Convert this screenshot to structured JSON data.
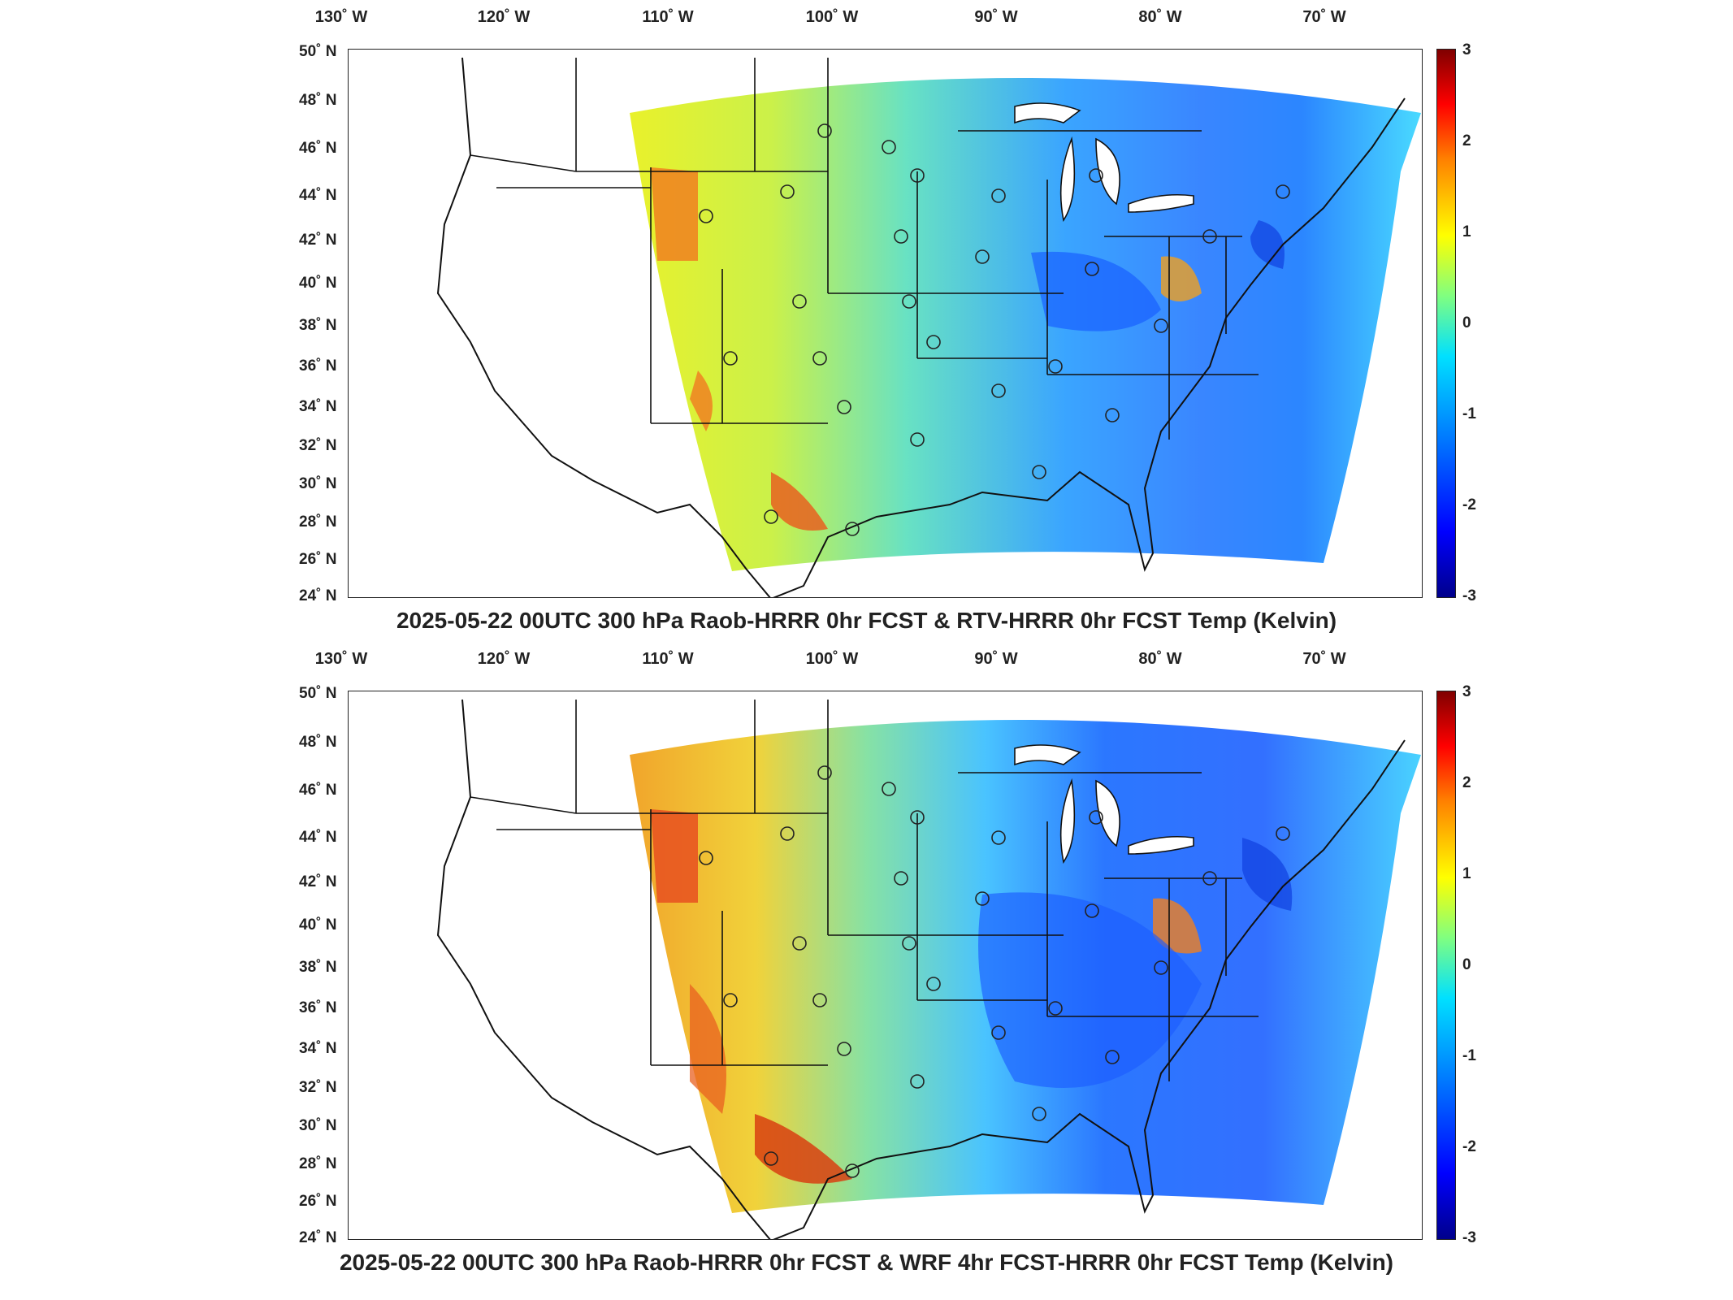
{
  "panels": [
    {
      "title": "2025-05-22 00UTC 300 hPa Raob-HRRR 0hr FCST & RTV-HRRR 0hr FCST Temp (Kelvin)",
      "lon_labels": [
        "130˚ W",
        "120˚ W",
        "110˚ W",
        "100˚ W",
        "90˚ W",
        "80˚ W",
        "70˚ W"
      ],
      "lat_labels": [
        "50˚ N",
        "48˚ N",
        "46˚ N",
        "44˚ N",
        "42˚ N",
        "40˚ N",
        "38˚ N",
        "36˚ N",
        "34˚ N",
        "32˚ N",
        "30˚ N",
        "28˚ N",
        "26˚ N",
        "24˚ N"
      ],
      "colorbar_ticks": [
        "3",
        "2",
        "1",
        "0",
        "-1",
        "-2",
        "-3"
      ]
    },
    {
      "title": "2025-05-22 00UTC 300 hPa Raob-HRRR 0hr FCST & WRF 4hr FCST-HRRR 0hr FCST Temp (Kelvin)",
      "lon_labels": [
        "130˚ W",
        "120˚ W",
        "110˚ W",
        "100˚ W",
        "90˚ W",
        "80˚ W",
        "70˚ W"
      ],
      "lat_labels": [
        "50˚ N",
        "48˚ N",
        "46˚ N",
        "44˚ N",
        "42˚ N",
        "40˚ N",
        "38˚ N",
        "36˚ N",
        "34˚ N",
        "32˚ N",
        "30˚ N",
        "28˚ N",
        "26˚ N",
        "24˚ N"
      ],
      "colorbar_ticks": [
        "3",
        "2",
        "1",
        "0",
        "-1",
        "-2",
        "-3"
      ]
    }
  ],
  "colorbar": {
    "min": -3,
    "max": 3,
    "colormap": "jet"
  },
  "colors": {
    "cold": "#0000ff",
    "neutral": "#80ff80",
    "warm": "#ff0000"
  }
}
